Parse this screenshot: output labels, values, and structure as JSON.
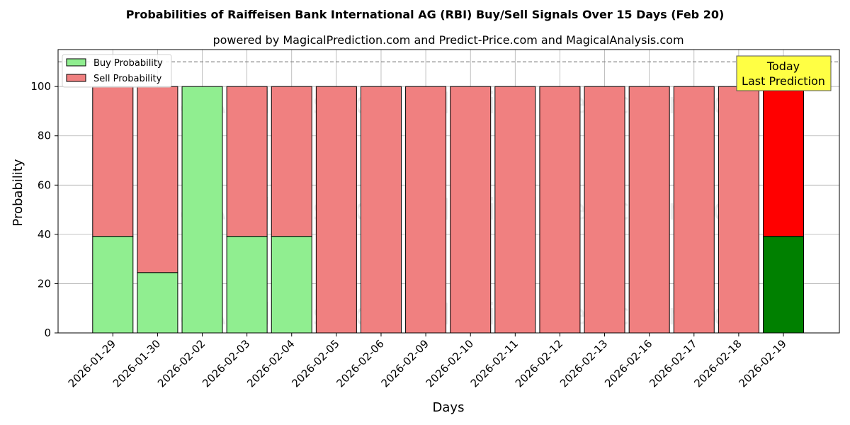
{
  "chart_data": {
    "type": "bar",
    "stacked": true,
    "title": "Probabilities of Raiffeisen Bank International AG (RBI) Buy/Sell Signals Over 15 Days (Feb 20)",
    "subtitle": "powered by MagicalPrediction.com and Predict-Price.com and MagicalAnalysis.com",
    "xlabel": "Days",
    "ylabel": "Probability",
    "ylim": [
      0,
      115
    ],
    "yticks": [
      0,
      20,
      40,
      60,
      80,
      100
    ],
    "grid": true,
    "reference_line": {
      "y": 110,
      "style": "dashed",
      "color": "#808080"
    },
    "categories": [
      "2026-01-29",
      "2026-01-30",
      "2026-02-02",
      "2026-02-03",
      "2026-02-04",
      "2026-02-05",
      "2026-02-06",
      "2026-02-09",
      "2026-02-10",
      "2026-02-11",
      "2026-02-12",
      "2026-02-13",
      "2026-02-16",
      "2026-02-17",
      "2026-02-18",
      "2026-02-19"
    ],
    "series": [
      {
        "name": "Buy Probability",
        "color": "#90EE90",
        "highlight_color": "#008000",
        "values": [
          39.2,
          24.5,
          100,
          39.2,
          39.2,
          0,
          0,
          0,
          0,
          0,
          0,
          0,
          0,
          0,
          0,
          39.2
        ]
      },
      {
        "name": "Sell Probability",
        "color": "#F08080",
        "highlight_color": "#FF0000",
        "values": [
          60.8,
          75.5,
          0,
          60.8,
          60.8,
          100,
          100,
          100,
          100,
          100,
          100,
          100,
          100,
          100,
          100,
          60.8
        ]
      }
    ],
    "highlight_index": 15,
    "legend": {
      "position": "upper left",
      "entries": [
        "Buy Probability",
        "Sell Probability"
      ]
    },
    "annotation": {
      "lines": [
        "Today",
        "Last Prediction"
      ],
      "background": "#FFFF44",
      "position": "upper right"
    },
    "watermarks": [
      "MagicalAnalysis.com",
      "MagicalPrediction.com"
    ]
  }
}
